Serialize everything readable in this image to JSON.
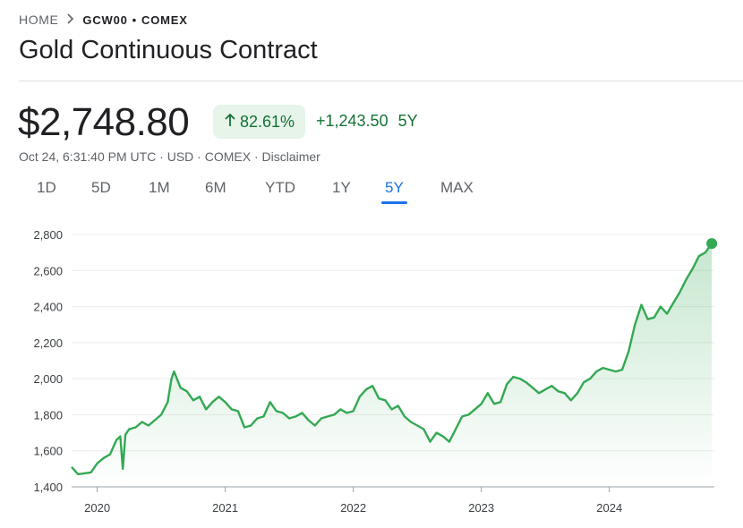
{
  "breadcrumb": {
    "home": "HOME",
    "symbol": "GCW00",
    "separator": "•",
    "exchange": "COMEX"
  },
  "title": "Gold Continuous Contract",
  "price": "$2,748.80",
  "change_percent": "82.61%",
  "change_absolute": "+1,243.50",
  "change_period": "5Y",
  "meta": "Oct 24, 6:31:40 PM UTC · USD · COMEX · Disclaimer",
  "colors": {
    "positive": "#137333",
    "line": "#34a853",
    "badge_bg": "#e6f4ea",
    "accent": "#1a73e8"
  },
  "icons": {
    "breadcrumb_chevron": "chevron-right-icon",
    "change_arrow": "arrow-up-icon"
  },
  "tabs": [
    {
      "label": "1D",
      "active": false
    },
    {
      "label": "5D",
      "active": false
    },
    {
      "label": "1M",
      "active": false
    },
    {
      "label": "6M",
      "active": false
    },
    {
      "label": "YTD",
      "active": false
    },
    {
      "label": "1Y",
      "active": false
    },
    {
      "label": "5Y",
      "active": true
    },
    {
      "label": "MAX",
      "active": false
    }
  ],
  "chart_data": {
    "type": "line",
    "title": "",
    "xlabel": "",
    "ylabel": "",
    "ylim": [
      1400,
      2800
    ],
    "xlim": [
      2019.8,
      2024.82
    ],
    "yticks": [
      1400,
      1600,
      1800,
      2000,
      2200,
      2400,
      2600,
      2800
    ],
    "ytick_labels": [
      "1,400",
      "1,600",
      "1,800",
      "2,000",
      "2,200",
      "2,400",
      "2,600",
      "2,800"
    ],
    "xticks": [
      2020,
      2021,
      2022,
      2023,
      2024
    ],
    "xtick_labels": [
      "2020",
      "2021",
      "2022",
      "2023",
      "2024"
    ],
    "grid": true,
    "area_fill": true,
    "series": [
      {
        "x": [
          2019.8,
          2019.85,
          2019.9,
          2019.95,
          2020.0,
          2020.05,
          2020.1,
          2020.15,
          2020.18,
          2020.2,
          2020.22,
          2020.25,
          2020.3,
          2020.35,
          2020.4,
          2020.45,
          2020.5,
          2020.55,
          2020.58,
          2020.6,
          2020.65,
          2020.7,
          2020.75,
          2020.8,
          2020.85,
          2020.9,
          2020.95,
          2021.0,
          2021.05,
          2021.1,
          2021.15,
          2021.2,
          2021.25,
          2021.3,
          2021.35,
          2021.4,
          2021.45,
          2021.5,
          2021.55,
          2021.6,
          2021.65,
          2021.7,
          2021.75,
          2021.8,
          2021.85,
          2021.9,
          2021.95,
          2022.0,
          2022.05,
          2022.1,
          2022.15,
          2022.2,
          2022.25,
          2022.3,
          2022.35,
          2022.4,
          2022.45,
          2022.5,
          2022.55,
          2022.6,
          2022.65,
          2022.7,
          2022.75,
          2022.8,
          2022.85,
          2022.9,
          2022.95,
          2023.0,
          2023.05,
          2023.1,
          2023.15,
          2023.2,
          2023.25,
          2023.3,
          2023.35,
          2023.4,
          2023.45,
          2023.5,
          2023.55,
          2023.6,
          2023.65,
          2023.7,
          2023.75,
          2023.8,
          2023.85,
          2023.9,
          2023.95,
          2024.0,
          2024.05,
          2024.1,
          2024.15,
          2024.2,
          2024.25,
          2024.3,
          2024.35,
          2024.4,
          2024.45,
          2024.5,
          2024.55,
          2024.6,
          2024.65,
          2024.7,
          2024.75,
          2024.8
        ],
        "y": [
          1510,
          1470,
          1475,
          1480,
          1530,
          1560,
          1580,
          1660,
          1680,
          1500,
          1690,
          1720,
          1730,
          1760,
          1740,
          1770,
          1800,
          1870,
          2000,
          2040,
          1950,
          1930,
          1880,
          1900,
          1830,
          1870,
          1900,
          1870,
          1830,
          1820,
          1730,
          1740,
          1780,
          1790,
          1870,
          1820,
          1810,
          1780,
          1790,
          1810,
          1770,
          1740,
          1780,
          1790,
          1800,
          1830,
          1810,
          1820,
          1900,
          1940,
          1960,
          1890,
          1880,
          1830,
          1850,
          1790,
          1760,
          1740,
          1720,
          1650,
          1700,
          1680,
          1650,
          1720,
          1790,
          1800,
          1830,
          1860,
          1920,
          1860,
          1870,
          1970,
          2010,
          2000,
          1980,
          1950,
          1920,
          1940,
          1960,
          1930,
          1920,
          1880,
          1920,
          1980,
          2000,
          2040,
          2060,
          2050,
          2040,
          2050,
          2150,
          2300,
          2410,
          2330,
          2340,
          2400,
          2360,
          2420,
          2480,
          2550,
          2610,
          2680,
          2700,
          2750
        ]
      }
    ]
  }
}
